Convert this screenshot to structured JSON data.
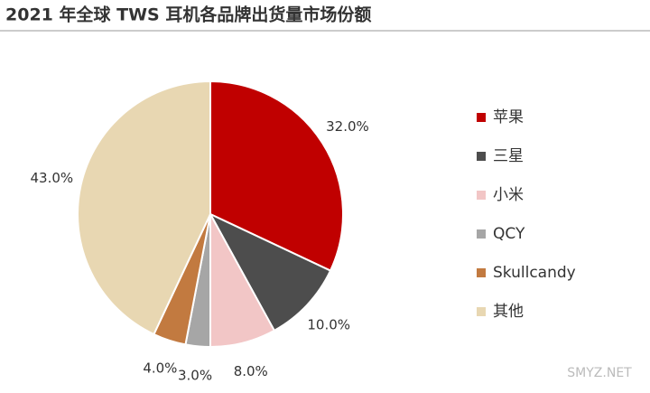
{
  "chart_data": {
    "type": "pie",
    "title": "2021 年全球 TWS 耳机各品牌出货量市场份额",
    "categories": [
      "苹果",
      "三星",
      "小米",
      "QCY",
      "Skullcandy",
      "其他"
    ],
    "values": [
      32,
      10,
      8,
      3,
      4,
      43
    ],
    "value_labels": [
      "32.0%",
      "10.0%",
      "8.0%",
      "3.0%",
      "4.0%",
      "43.0%"
    ],
    "colors": [
      "#c00000",
      "#4d4d4d",
      "#f2c6c6",
      "#a6a6a6",
      "#c27a40",
      "#e8d7b2"
    ],
    "legend": "right",
    "watermark": "SMYZ.NET"
  }
}
